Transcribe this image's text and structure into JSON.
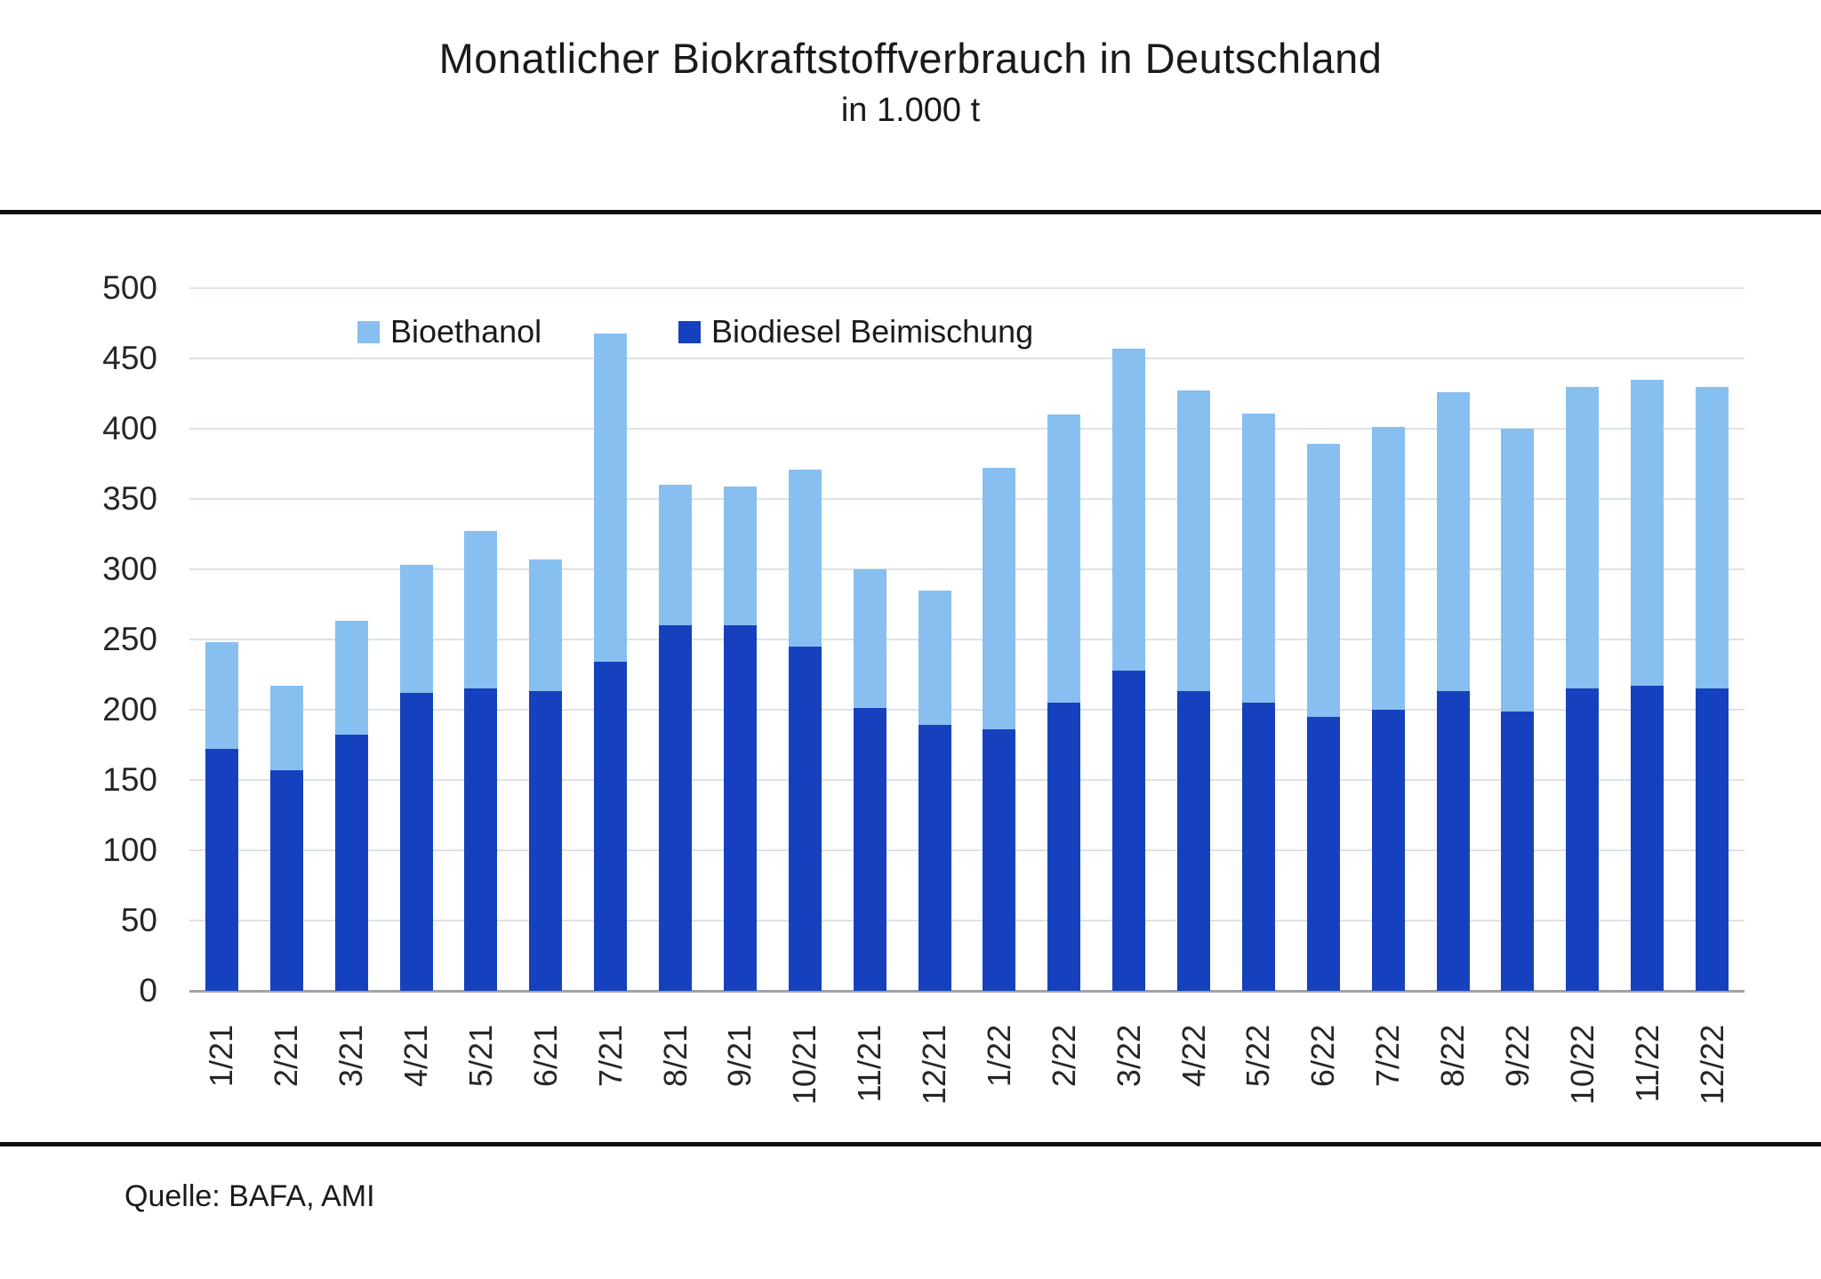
{
  "header": {
    "title": "Monatlicher Biokraftstoffverbrauch in Deutschland",
    "subtitle": "in 1.000 t"
  },
  "legend": {
    "items": [
      {
        "label": "Bioethanol",
        "color": "#87bff0"
      },
      {
        "label": "Biodiesel Beimischung",
        "color": "#1641be"
      }
    ]
  },
  "source_line": "Quelle: BAFA, AMI",
  "colors": {
    "bioethanol": "#87bff0",
    "biodiesel": "#1641be",
    "gridline": "#dce3e6",
    "baseline": "#9ea4a9",
    "rule": "#0d0d0d"
  },
  "chart_data": {
    "type": "bar",
    "stacked": true,
    "title": "Monatlicher Biokraftstoffverbrauch in Deutschland",
    "subtitle": "in 1.000 t",
    "xlabel": "",
    "ylabel": "",
    "unit": "1.000 t",
    "ylim": [
      0,
      500
    ],
    "ytick_step": 50,
    "yticks": [
      0,
      50,
      100,
      150,
      200,
      250,
      300,
      350,
      400,
      450,
      500
    ],
    "grid": true,
    "legend_position": "top-inside",
    "categories": [
      "1/21",
      "2/21",
      "3/21",
      "4/21",
      "5/21",
      "6/21",
      "7/21",
      "8/21",
      "9/21",
      "10/21",
      "11/21",
      "12/21",
      "1/22",
      "2/22",
      "3/22",
      "4/22",
      "5/22",
      "6/22",
      "7/22",
      "8/22",
      "9/22",
      "10/22",
      "11/22",
      "12/22"
    ],
    "series": [
      {
        "name": "Biodiesel Beimischung",
        "color": "#1641be",
        "stack_order": "bottom",
        "values": [
          172,
          157,
          182,
          212,
          215,
          213,
          234,
          260,
          260,
          245,
          201,
          189,
          186,
          205,
          228,
          213,
          205,
          195,
          200,
          213,
          199,
          215,
          217,
          215
        ]
      },
      {
        "name": "Bioethanol",
        "color": "#87bff0",
        "stack_order": "top",
        "values": [
          76,
          60,
          81,
          91,
          112,
          94,
          234,
          100,
          99,
          126,
          99,
          96,
          186,
          205,
          229,
          214,
          206,
          194,
          201,
          213,
          201,
          215,
          218,
          215
        ]
      }
    ],
    "totals": [
      248,
      217,
      263,
      303,
      327,
      307,
      468,
      360,
      359,
      371,
      300,
      285,
      372,
      410,
      457,
      427,
      411,
      389,
      401,
      426,
      400,
      430,
      435,
      430
    ]
  }
}
